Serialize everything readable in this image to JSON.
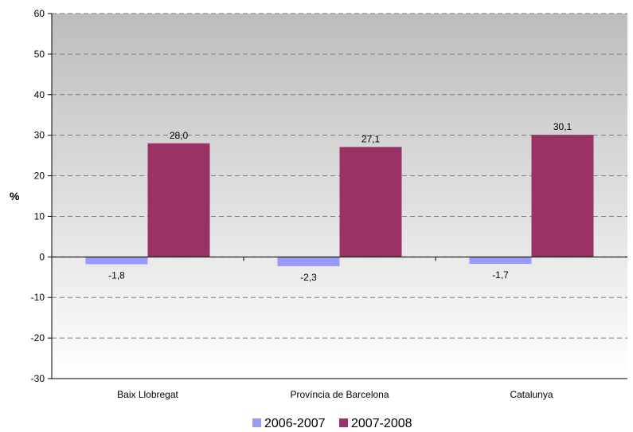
{
  "chart_data": {
    "type": "bar",
    "categories": [
      "Baix Llobregat",
      "Província de Barcelona",
      "Catalunya"
    ],
    "series": [
      {
        "name": "2006-2007",
        "values": [
          -1.8,
          -2.3,
          -1.7
        ],
        "labels": [
          "-1,8",
          "-2,3",
          "-1,7"
        ],
        "color": "#9999ff"
      },
      {
        "name": "2007-2008",
        "values": [
          28.0,
          27.1,
          30.1
        ],
        "labels": [
          "28,0",
          "27,1",
          "30,1"
        ],
        "color": "#993366"
      }
    ],
    "ylabel": "%",
    "ylim": [
      -30,
      60
    ],
    "yticks": [
      -30,
      -20,
      -10,
      0,
      10,
      20,
      30,
      40,
      50,
      60
    ],
    "grid": true,
    "legend_position": "bottom"
  }
}
